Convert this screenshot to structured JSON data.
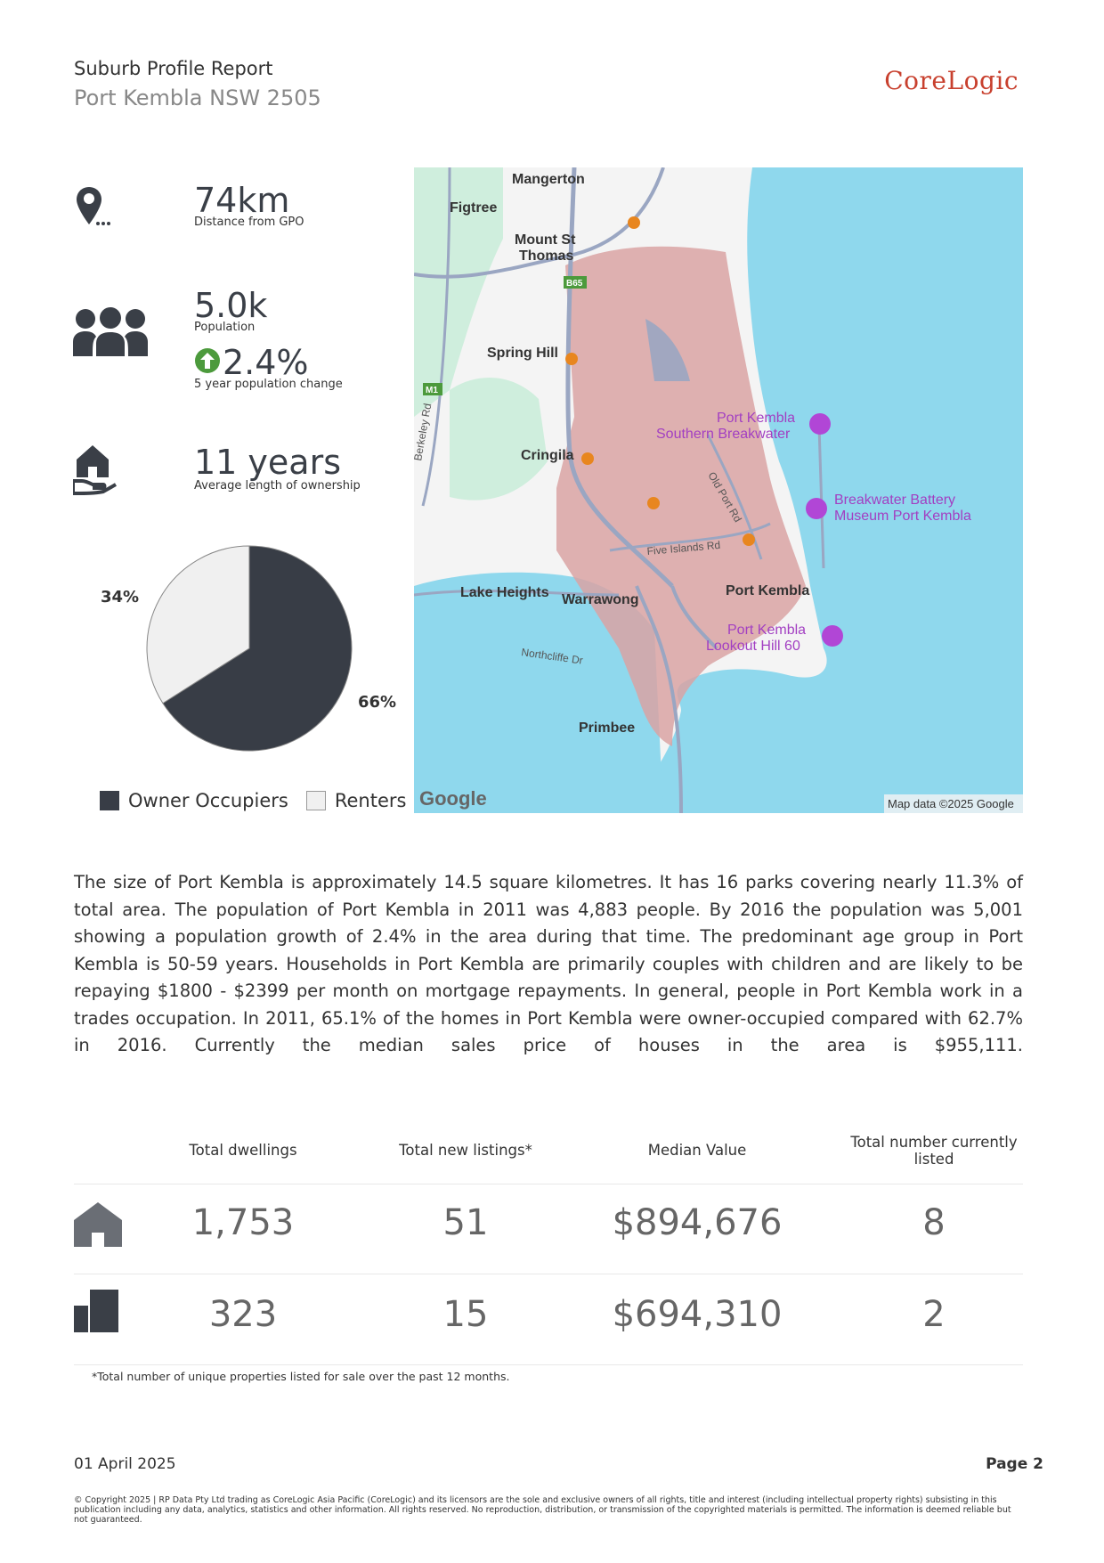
{
  "header": {
    "title": "Suburb Profile Report",
    "subtitle": "Port Kembla NSW 2505",
    "logo": "CoreLogic"
  },
  "stats": {
    "distance": {
      "value": "74km",
      "label": "Distance from GPO",
      "icon": "location-pin-icon"
    },
    "population": {
      "value": "5.0k",
      "label": "Population",
      "icon": "people-icon"
    },
    "population_change": {
      "value": "2.4%",
      "label": "5 year population change",
      "icon": "up-arrow-icon"
    },
    "ownership": {
      "value": "11 years",
      "label": "Average length of ownership",
      "icon": "house-hand-icon"
    }
  },
  "chart_data": {
    "type": "pie",
    "categories": [
      "Owner Occupiers",
      "Renters"
    ],
    "values": [
      66,
      34
    ],
    "labels": [
      "66%",
      "34%"
    ],
    "colors": [
      "#383d46",
      "#f0f0f0"
    ],
    "legend_position": "bottom"
  },
  "map": {
    "places": [
      "Mangerton",
      "Figtree",
      "Mount St",
      "Thomas",
      "Spring Hill",
      "Cringila",
      "Lake Heights",
      "Warrawong",
      "Port Kembla",
      "Primbee"
    ],
    "roads": [
      "Berkeley Rd",
      "Old Port Rd",
      "Five Islands Rd",
      "Northcliffe Dr"
    ],
    "road_shields": [
      "B65",
      "M1"
    ],
    "pois": [
      "Port Kembla",
      "Southern Breakwater",
      "Breakwater Battery",
      "Museum Port Kembla",
      "Port Kembla",
      "Lookout Hill 60"
    ],
    "brand": "Google",
    "attribution": "Map data ©2025 Google",
    "colors": {
      "water": "#8fd8ed",
      "land": "#f4f4f4",
      "suburb": "#d9a3a3",
      "green": "#cfeedd",
      "road": "#9aa6c2"
    }
  },
  "description": "The size of Port Kembla is approximately 14.5 square kilometres. It has 16 parks covering nearly 11.3% of total area. The population of Port Kembla in 2011 was 4,883 people. By 2016 the population was 5,001 showing a population growth of 2.4% in the area during that time. The predominant age group in Port Kembla is 50-59 years. Households in Port Kembla are primarily couples with children and are likely to be repaying $1800 - $2399 per month on mortgage repayments. In general, people in Port Kembla work in a trades occupation. In 2011, 65.1% of the homes in Port Kembla were owner-occupied compared with 62.7% in 2016. Currently the median sales price of houses in the area is $955,111.",
  "table": {
    "headers": [
      "Total dwellings",
      "Total new listings*",
      "Median Value",
      "Total number currently listed"
    ],
    "rows": [
      {
        "icon": "house-icon",
        "values": [
          "1,753",
          "51",
          "$894,676",
          "8"
        ]
      },
      {
        "icon": "unit-icon",
        "values": [
          "323",
          "15",
          "$694,310",
          "2"
        ]
      }
    ],
    "footnote": "*Total number of unique properties listed for sale over the past 12 months."
  },
  "footer": {
    "date": "01 April  2025",
    "page": "Page 2",
    "copyright": "© Copyright 2025 | RP Data Pty Ltd trading as CoreLogic Asia Pacific (CoreLogic) and its licensors are the sole and exclusive owners of all rights, title and interest (including intellectual property rights) subsisting in this publication including any data, analytics, statistics and other information. All rights reserved. No reproduction, distribution, or transmission of the copyrighted materials is permitted. The information is deemed reliable but not guaranteed."
  }
}
